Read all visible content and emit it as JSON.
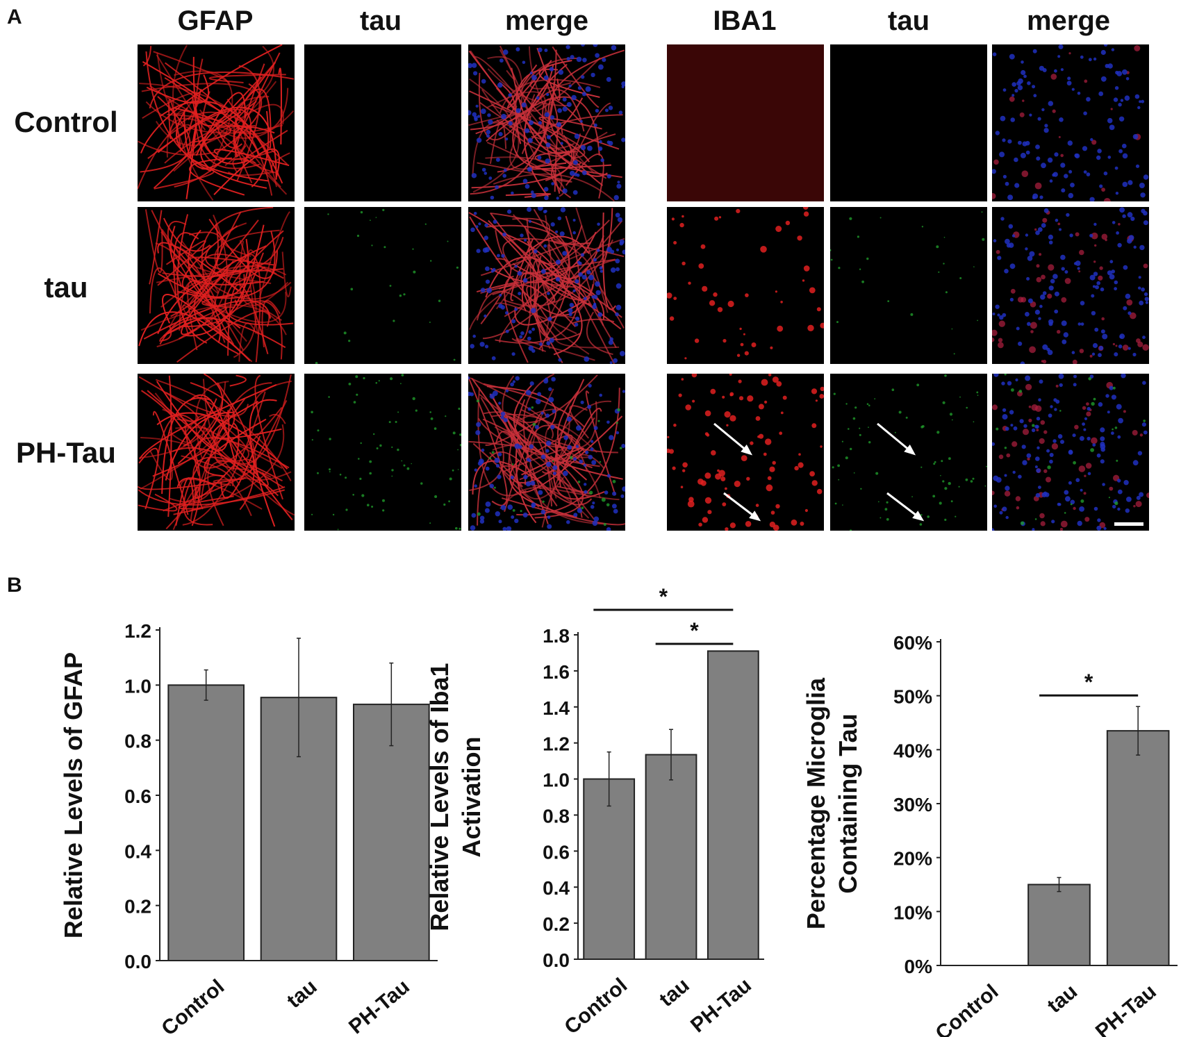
{
  "panels": {
    "a": "A",
    "b": "B"
  },
  "panel_a": {
    "left_group": [
      "GFAP",
      "tau",
      "merge"
    ],
    "right_group": [
      "IBA1",
      "tau",
      "merge"
    ],
    "rows": [
      "Control",
      "tau",
      "PH-Tau"
    ]
  },
  "chart_data": [
    {
      "type": "bar",
      "categories": [
        "Control",
        "tau",
        "PH-Tau"
      ],
      "values": [
        1.0,
        0.955,
        0.93
      ],
      "errors": [
        0.055,
        0.215,
        0.15
      ],
      "ylabel": "Relative Levels of GFAP",
      "ylim": [
        0,
        1.2
      ],
      "yticks": [
        "0.0",
        "0.2",
        "0.4",
        "0.6",
        "0.8",
        "1.0",
        "1.2"
      ],
      "significance": [],
      "bar_color": "#808080"
    },
    {
      "type": "bar",
      "categories": [
        "Control",
        "tau",
        "PH-Tau"
      ],
      "values": [
        1.0,
        1.135,
        1.71
      ],
      "errors": [
        0.15,
        0.14,
        0.0
      ],
      "ylabel": "Relative Levels of Iba1 Activation",
      "ylim": [
        0,
        1.8
      ],
      "yticks": [
        "0.0",
        "0.2",
        "0.4",
        "0.6",
        "0.8",
        "1.0",
        "1.2",
        "1.4",
        "1.6",
        "1.8"
      ],
      "significance": [
        {
          "from": "Control",
          "to": "PH-Tau",
          "label": "*"
        },
        {
          "from": "tau",
          "to": "PH-Tau",
          "label": "*"
        }
      ],
      "bar_color": "#808080"
    },
    {
      "type": "bar",
      "categories": [
        "Control",
        "tau",
        "PH-Tau"
      ],
      "values": [
        0,
        15,
        43.5
      ],
      "errors": [
        0,
        1.3,
        4.5
      ],
      "ylabel": "Percentage Microglia Containing Tau",
      "ylim": [
        0,
        60
      ],
      "yticks": [
        "0%",
        "10%",
        "20%",
        "30%",
        "40%",
        "50%",
        "60%"
      ],
      "significance": [
        {
          "from": "tau",
          "to": "PH-Tau",
          "label": "*"
        }
      ],
      "bar_color": "#808080"
    }
  ]
}
